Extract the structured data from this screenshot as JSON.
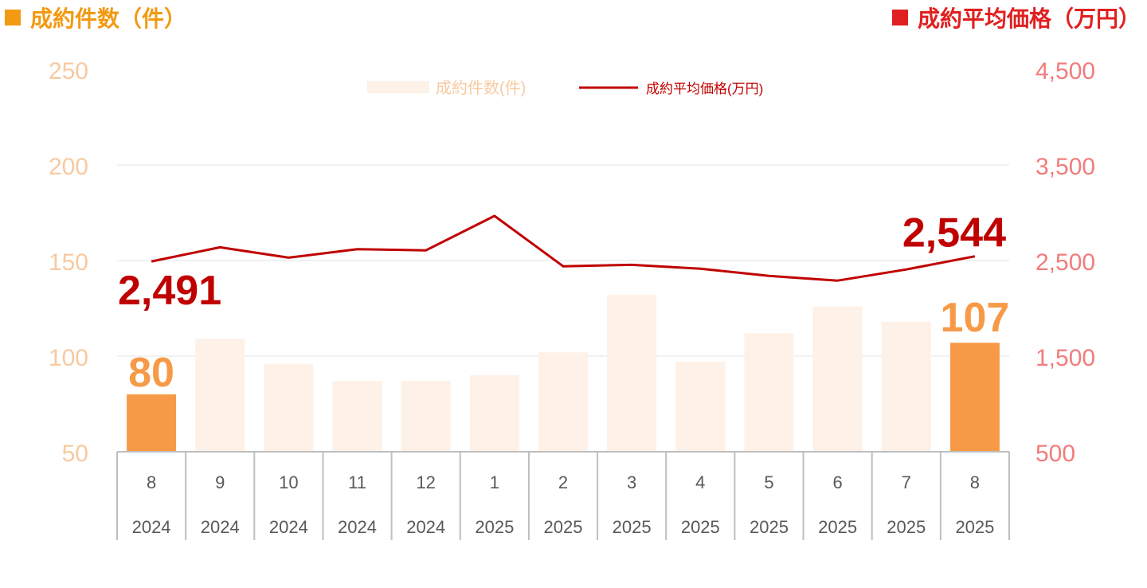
{
  "titles": {
    "left": "成約件数（件）",
    "right": "成約平均価格（万円）"
  },
  "colors": {
    "bar_highlight": "#F79A47",
    "bar_normal": "#FDF1E8",
    "line": "#C00000",
    "left_axis": "#F8C9A0",
    "right_axis": "#F27C7C",
    "title_left": "#F29A12",
    "title_right": "#E02020",
    "grid": "#E3E3E3",
    "tick_text": "#595959",
    "table_lines": "#BFBFBF"
  },
  "chart_data": {
    "type": "bar+line",
    "categories": [
      [
        "8",
        "2024"
      ],
      [
        "9",
        "2024"
      ],
      [
        "10",
        "2024"
      ],
      [
        "11",
        "2024"
      ],
      [
        "12",
        "2024"
      ],
      [
        "1",
        "2025"
      ],
      [
        "2",
        "2025"
      ],
      [
        "3",
        "2025"
      ],
      [
        "4",
        "2025"
      ],
      [
        "5",
        "2025"
      ],
      [
        "6",
        "2025"
      ],
      [
        "7",
        "2025"
      ],
      [
        "8",
        "2025"
      ]
    ],
    "series": [
      {
        "name": "成約件数(件)",
        "type": "bar",
        "axis": "left",
        "values": [
          80,
          109,
          96,
          87,
          87,
          90,
          102,
          132,
          97,
          112,
          126,
          118,
          107
        ],
        "highlight": [
          0,
          12
        ]
      },
      {
        "name": "成約平均価格(万円)",
        "type": "line",
        "axis": "right",
        "values": [
          2491,
          2638,
          2530,
          2618,
          2607,
          2967,
          2440,
          2455,
          2415,
          2339,
          2290,
          2407,
          2544
        ]
      }
    ],
    "left_axis": {
      "min": 50,
      "max": 250,
      "ticks": [
        "50",
        "100",
        "150",
        "200",
        "250"
      ]
    },
    "right_axis": {
      "min": 500,
      "max": 4500,
      "ticks": [
        "500",
        "1,500",
        "2,500",
        "3,500",
        "4,500"
      ]
    },
    "annotations": {
      "bar_first": "80",
      "bar_last": "107",
      "line_first": "2,491",
      "line_last": "2,544"
    },
    "legend": {
      "position": "top-center",
      "bar_label": "成約件数(件)",
      "line_label": "成約平均価格(万円)"
    },
    "grid": true
  }
}
